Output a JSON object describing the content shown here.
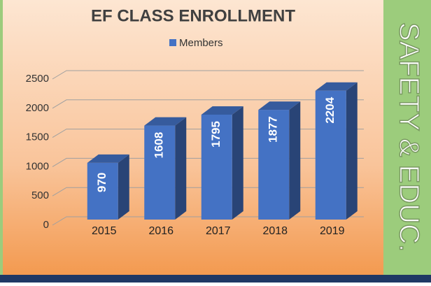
{
  "chart_data": {
    "type": "bar",
    "title": "EF CLASS ENROLLMENT",
    "categories": [
      "2015",
      "2016",
      "2017",
      "2018",
      "2019"
    ],
    "series": [
      {
        "name": "Members",
        "color": "#4472c4",
        "values": [
          970,
          1608,
          1795,
          1877,
          2204
        ]
      }
    ],
    "ylim": [
      0,
      2500
    ],
    "yticks": [
      0,
      500,
      1000,
      1500,
      2000,
      2500
    ],
    "grid": true,
    "legend": "top"
  },
  "sidebar": {
    "text": "SAFETY & EDUC."
  }
}
